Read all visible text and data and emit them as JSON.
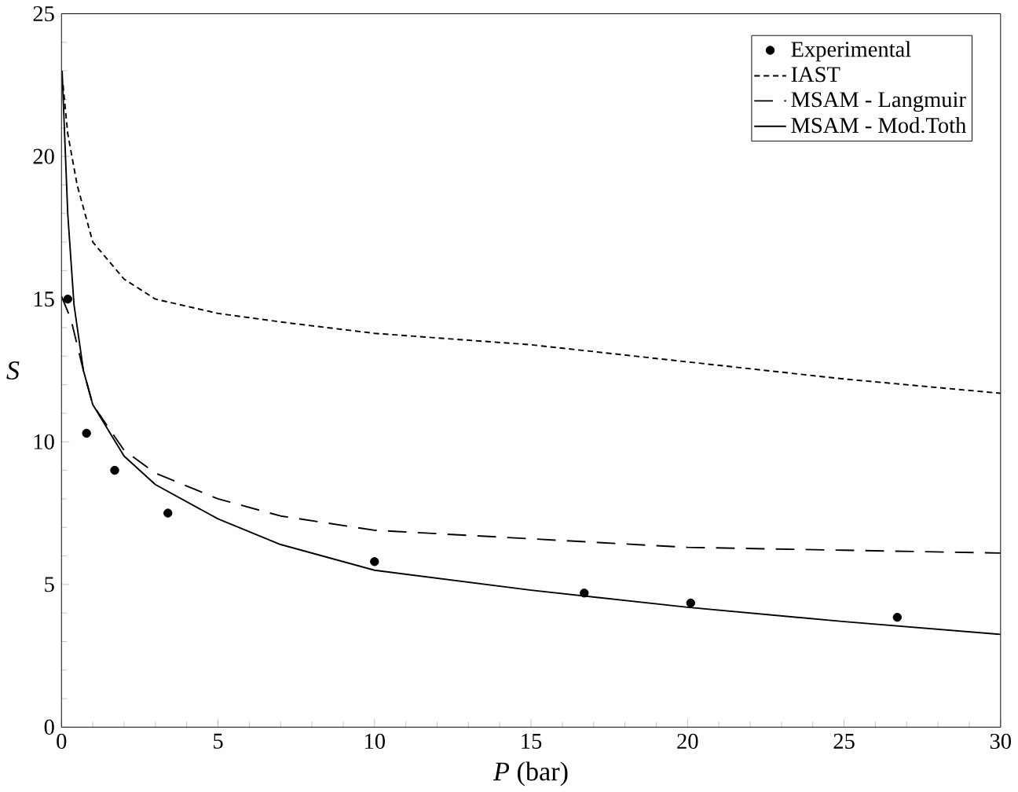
{
  "chart_data": {
    "type": "line",
    "xlabel": "*P* (bar)",
    "ylabel": "*S*",
    "xlim": [
      0,
      30
    ],
    "ylim": [
      0,
      25
    ],
    "xticks": [
      0,
      5,
      10,
      15,
      20,
      25,
      30
    ],
    "yticks": [
      0,
      5,
      10,
      15,
      20,
      25
    ],
    "legend": "top right",
    "grid": false,
    "series": [
      {
        "name": "Experimental",
        "type": "scatter",
        "marker": "circle",
        "color": "#000000",
        "x": [
          0.2,
          0.8,
          1.7,
          3.4,
          10,
          16.7,
          20.1,
          26.7
        ],
        "values": [
          15,
          10.3,
          9,
          7.5,
          5.8,
          4.7,
          4.35,
          3.85
        ]
      },
      {
        "name": "IAST",
        "line_style": "dotted",
        "marker": "none",
        "color": "#000000",
        "x": [
          0.05,
          0.2,
          0.5,
          1,
          2,
          3,
          5,
          7,
          10,
          15,
          20,
          25,
          30
        ],
        "values": [
          22.5,
          20.8,
          19,
          17,
          15.7,
          15,
          14.5,
          14.2,
          13.8,
          13.4,
          12.8,
          12.2,
          11.7
        ]
      },
      {
        "name": "MSAM - Langmuir",
        "line_style": "dashed",
        "marker": "none",
        "color": "#000000",
        "x": [
          0,
          0.3,
          0.7,
          1,
          2,
          3,
          5,
          7,
          10,
          15,
          20,
          25,
          30
        ],
        "values": [
          15.1,
          14.3,
          12.5,
          11.3,
          9.7,
          8.9,
          8,
          7.4,
          6.9,
          6.6,
          6.3,
          6.2,
          6.1
        ]
      },
      {
        "name": "MSAM - Mod.Toth",
        "line_style": "solid",
        "marker": "none",
        "color": "#000000",
        "x": [
          0.02,
          0.2,
          0.4,
          0.7,
          1,
          2,
          3,
          5,
          7,
          10,
          15,
          20,
          25,
          30
        ],
        "values": [
          23,
          18,
          14.8,
          12.5,
          11.3,
          9.5,
          8.5,
          7.3,
          6.4,
          5.5,
          4.8,
          4.2,
          3.7,
          3.25
        ]
      }
    ]
  }
}
